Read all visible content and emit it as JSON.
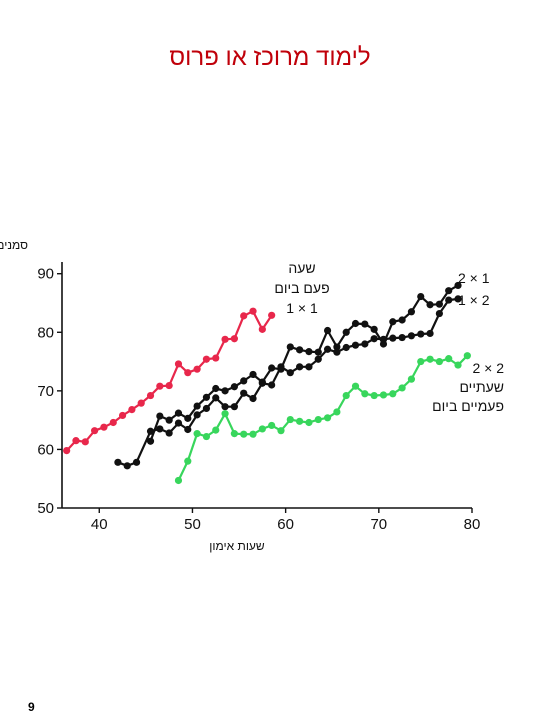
{
  "slide": {
    "title": "לימוד מרוכז או פרוס",
    "page_number": "9"
  },
  "chart_data": {
    "type": "line",
    "title": "",
    "xlabel": "שעות אימון",
    "ylabel": "סמנים לדקה",
    "xlim": [
      36,
      80
    ],
    "ylim": [
      50,
      92
    ],
    "x_ticks": [
      40,
      50,
      60,
      70,
      80
    ],
    "y_ticks": [
      50,
      60,
      70,
      80,
      90
    ],
    "grid": false,
    "legend_placement": "inline-labels",
    "series": [
      {
        "legend": [
          "שעה",
          "פעם ביום",
          "1 × 1"
        ],
        "color": "#e8274b",
        "x": [
          36.5,
          37.5,
          38.5,
          39.5,
          40.5,
          41.5,
          42.5,
          43.5,
          44.5,
          45.5,
          46.5,
          47.5,
          48.5,
          49.5,
          50.5,
          51.5,
          52.5,
          53.5,
          54.5,
          55.5,
          56.5,
          57.5,
          58.5
        ],
        "y": [
          59.8,
          61.5,
          61.3,
          63.2,
          63.8,
          64.6,
          65.8,
          66.8,
          67.9,
          69.2,
          70.8,
          70.9,
          74.6,
          73.1,
          73.7,
          75.4,
          75.6,
          78.8,
          78.9,
          82.8,
          83.6,
          80.5,
          82.9
        ]
      },
      {
        "legend": [
          "2 × 1"
        ],
        "color": "#111111",
        "x": [
          45.5,
          46.5,
          47.5,
          48.5,
          49.5,
          50.5,
          51.5,
          52.5,
          53.5,
          54.5,
          55.5,
          56.5,
          57.5,
          58.5,
          59.5,
          60.5,
          61.5,
          62.5,
          63.5,
          64.5,
          65.5,
          66.5,
          67.5,
          68.5,
          69.5,
          70.5,
          71.5,
          72.5,
          73.5,
          74.5,
          75.5,
          76.5,
          77.5,
          78.5
        ],
        "y": [
          61.4,
          65.7,
          65.0,
          66.2,
          65.3,
          67.4,
          68.9,
          70.4,
          70.0,
          70.7,
          71.7,
          72.8,
          71.5,
          73.9,
          73.7,
          77.5,
          77.0,
          76.7,
          76.6,
          80.3,
          77.5,
          80.0,
          81.5,
          81.4,
          80.5,
          78.0,
          81.8,
          82.1,
          83.5,
          86.1,
          84.7,
          84.8,
          87.1,
          88.0
        ]
      },
      {
        "legend": [
          "1 × 2"
        ],
        "color": "#111111",
        "x": [
          42,
          43,
          44,
          45.5,
          46.5,
          47.5,
          48.5,
          49.5,
          50.5,
          51.5,
          52.5,
          53.5,
          54.5,
          55.5,
          56.5,
          57.5,
          58.5,
          59.5,
          60.5,
          61.5,
          62.5,
          63.5,
          64.5,
          65.5,
          66.5,
          67.5,
          68.5,
          69.5,
          70.5,
          71.5,
          72.5,
          73.5,
          74.5,
          75.5,
          76.5,
          77.5,
          78.5
        ],
        "y": [
          57.8,
          57.2,
          57.8,
          63.1,
          63.5,
          62.8,
          64.5,
          63.4,
          65.9,
          67.0,
          68.8,
          67.3,
          67.3,
          69.6,
          68.7,
          71.3,
          71.0,
          74.1,
          73.1,
          74.1,
          74.1,
          75.4,
          77.1,
          76.6,
          77.4,
          77.8,
          78.0,
          78.9,
          78.8,
          79.0,
          79.1,
          79.4,
          79.7,
          79.8,
          83.2,
          85.5,
          85.7
        ]
      },
      {
        "legend": [
          "2 × 2",
          "שעתיים",
          "פעמיים ביום"
        ],
        "color": "#38d65c",
        "x": [
          48.5,
          49.5,
          50.5,
          51.5,
          52.5,
          53.5,
          54.5,
          55.5,
          56.5,
          57.5,
          58.5,
          59.5,
          60.5,
          61.5,
          62.5,
          63.5,
          64.5,
          65.5,
          66.5,
          67.5,
          68.5,
          69.5,
          70.5,
          71.5,
          72.5,
          73.5,
          74.5,
          75.5,
          76.5,
          77.5,
          78.5,
          79.5
        ],
        "y": [
          54.7,
          58.0,
          62.7,
          62.2,
          63.3,
          66.1,
          62.7,
          62.6,
          62.6,
          63.5,
          64.1,
          63.2,
          65.1,
          64.8,
          64.6,
          65.1,
          65.4,
          66.4,
          69.2,
          70.8,
          69.5,
          69.2,
          69.3,
          69.5,
          70.5,
          72.0,
          75.0,
          75.4,
          75.0,
          75.5,
          74.4,
          76.0
        ]
      }
    ]
  }
}
